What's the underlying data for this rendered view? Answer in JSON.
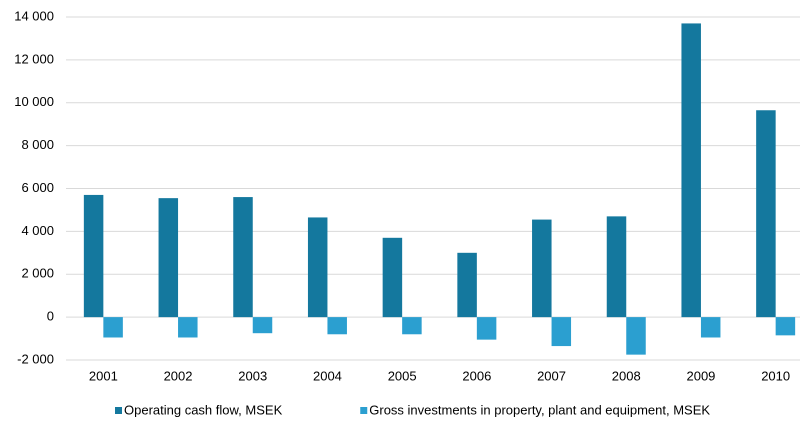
{
  "chart_data": {
    "type": "bar",
    "categories": [
      "2001",
      "2002",
      "2003",
      "2004",
      "2005",
      "2006",
      "2007",
      "2008",
      "2009",
      "2010"
    ],
    "series": [
      {
        "name": "Operating cash flow, MSEK",
        "color": "#14789e",
        "values": [
          5700,
          5550,
          5600,
          4650,
          3700,
          3000,
          4550,
          4700,
          13700,
          9650
        ]
      },
      {
        "name": "Gross investments in property, plant and equipment, MSEK",
        "color": "#2b9fd0",
        "values": [
          -950,
          -950,
          -750,
          -800,
          -800,
          -1050,
          -1350,
          -1750,
          -950,
          -850
        ]
      }
    ],
    "ylim": [
      -2000,
      14000
    ],
    "yticks": [
      {
        "value": -2000,
        "label": "-2 000"
      },
      0,
      {
        "value": 2000,
        "label": "2 000"
      },
      {
        "value": 4000,
        "label": "4 000"
      },
      {
        "value": 6000,
        "label": "6 000"
      },
      {
        "value": 8000,
        "label": "8 000"
      },
      {
        "value": 10000,
        "label": "10 000"
      },
      {
        "value": 12000,
        "label": "12 000"
      },
      {
        "value": 14000,
        "label": "14 000"
      }
    ],
    "grid": true
  }
}
